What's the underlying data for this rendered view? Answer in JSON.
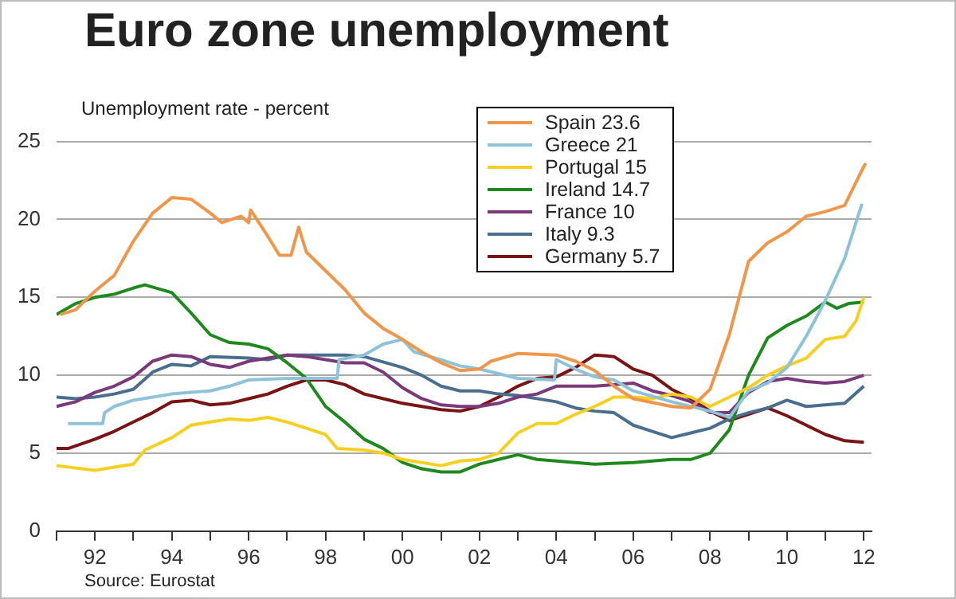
{
  "chart_data": {
    "type": "line",
    "title": "Euro zone unemployment",
    "ylabel": "Unemployment rate - percent",
    "annotations": [
      "Source: Eurostat"
    ],
    "xlim": [
      1991,
      2012.2
    ],
    "xticks": [
      {
        "value": 1991,
        "label": null
      },
      {
        "value": 1992,
        "label": "92"
      },
      {
        "value": 1993,
        "label": null
      },
      {
        "value": 1994,
        "label": "94"
      },
      {
        "value": 1995,
        "label": null
      },
      {
        "value": 1996,
        "label": "96"
      },
      {
        "value": 1997,
        "label": null
      },
      {
        "value": 1998,
        "label": "98"
      },
      {
        "value": 1999,
        "label": null
      },
      {
        "value": 2000,
        "label": "00"
      },
      {
        "value": 2001,
        "label": null
      },
      {
        "value": 2002,
        "label": "02"
      },
      {
        "value": 2003,
        "label": null
      },
      {
        "value": 2004,
        "label": "04"
      },
      {
        "value": 2005,
        "label": null
      },
      {
        "value": 2006,
        "label": "06"
      },
      {
        "value": 2007,
        "label": null
      },
      {
        "value": 2008,
        "label": "08"
      },
      {
        "value": 2009,
        "label": null
      },
      {
        "value": 2010,
        "label": "10"
      },
      {
        "value": 2011,
        "label": null
      },
      {
        "value": 2012,
        "label": "12"
      }
    ],
    "ylim": [
      0,
      25
    ],
    "yticks": [
      0,
      5,
      10,
      15,
      20,
      25
    ],
    "grid": "y",
    "legend": "top",
    "marker": "none",
    "line_style": "solid",
    "series": [
      {
        "name": "Spain 23.6",
        "color": "#f0964a",
        "x": [
          1991.1,
          1991.5,
          1992,
          1992.5,
          1993,
          1993.5,
          1994,
          1994.5,
          1995,
          1995.3,
          1995.8,
          1996,
          1996.05,
          1996.5,
          1996.8,
          1997.1,
          1997.3,
          1997.5,
          1998,
          1998.5,
          1999,
          1999.5,
          2000,
          2000.5,
          2001,
          2001.5,
          2002,
          2002.3,
          2003,
          2004,
          2004.5,
          2005,
          2005.5,
          2006,
          2007,
          2007.5,
          2008,
          2008.5,
          2009,
          2009.5,
          2010,
          2010.5,
          2011,
          2011.5,
          2012,
          2012.05
        ],
        "values": [
          13.9,
          14.2,
          15.4,
          16.4,
          18.6,
          20.4,
          21.4,
          21.3,
          20.4,
          19.8,
          20.2,
          19.8,
          20.6,
          18.9,
          17.7,
          17.7,
          19.5,
          17.9,
          16.7,
          15.5,
          14.0,
          13.0,
          12.3,
          11.5,
          10.8,
          10.3,
          10.4,
          10.9,
          11.4,
          11.3,
          10.9,
          10.3,
          9.3,
          8.5,
          8.0,
          7.9,
          9.1,
          12.6,
          17.3,
          18.5,
          19.2,
          20.2,
          20.5,
          20.9,
          23.4,
          23.6
        ]
      },
      {
        "name": "Greece 21",
        "color": "#8ec2d8",
        "x": [
          1991.3,
          1992.2,
          1992.25,
          1992.5,
          1993,
          1994,
          1995,
          1995.5,
          1996,
          1997,
          1998.3,
          1998.35,
          1999,
          1999.5,
          2000,
          2000.3,
          2001,
          2001.5,
          2002,
          2003,
          2003.95,
          2004,
          2004.5,
          2005,
          2005.5,
          2006,
          2007,
          2008,
          2008.5,
          2009,
          2009.5,
          2010,
          2010.5,
          2011,
          2011.5,
          2011.95
        ],
        "values": [
          6.9,
          6.9,
          7.6,
          8.0,
          8.4,
          8.8,
          9.0,
          9.3,
          9.7,
          9.8,
          9.8,
          11.0,
          11.3,
          12.0,
          12.3,
          11.5,
          11.0,
          10.6,
          10.4,
          9.8,
          9.7,
          11.0,
          10.4,
          9.9,
          9.7,
          9.0,
          8.3,
          7.7,
          7.3,
          9.0,
          9.5,
          10.5,
          12.5,
          14.8,
          17.5,
          21.0
        ]
      },
      {
        "name": "Portugal 15",
        "color": "#f5d020",
        "x": [
          1991,
          1992,
          1992.5,
          1993,
          1993.3,
          1994,
          1994.5,
          1995,
          1995.5,
          1996,
          1996.5,
          1997,
          1997.5,
          1998,
          1998.3,
          1999,
          1999.5,
          2000,
          2001,
          2001.5,
          2002,
          2002.5,
          2003,
          2003.5,
          2004,
          2004.5,
          2005,
          2005.5,
          2006,
          2006.5,
          2007,
          2007.5,
          2008,
          2008.5,
          2009,
          2009.5,
          2010,
          2010.5,
          2011,
          2011.5,
          2011.8,
          2012
        ],
        "values": [
          4.2,
          3.9,
          4.1,
          4.3,
          5.2,
          6.0,
          6.8,
          7.0,
          7.2,
          7.1,
          7.3,
          7.0,
          6.6,
          6.2,
          5.3,
          5.2,
          5.0,
          4.6,
          4.2,
          4.5,
          4.6,
          5.0,
          6.3,
          6.9,
          6.9,
          7.5,
          8.0,
          8.6,
          8.6,
          8.5,
          8.8,
          8.6,
          8.0,
          8.6,
          9.2,
          10.0,
          10.6,
          11.1,
          12.3,
          12.5,
          13.5,
          15.0
        ]
      },
      {
        "name": "Ireland 14.7",
        "color": "#1e8a1e",
        "x": [
          1991,
          1991.5,
          1992,
          1992.5,
          1993,
          1993.3,
          1994,
          1994.5,
          1995,
          1995.5,
          1996,
          1996.5,
          1997,
          1997.5,
          1998,
          1998.5,
          1999,
          1999.5,
          2000,
          2000.5,
          2001,
          2001.5,
          2002,
          2002.5,
          2003,
          2003.5,
          2004,
          2005,
          2006,
          2007,
          2007.5,
          2008,
          2008.5,
          2009,
          2009.5,
          2010,
          2010.5,
          2011,
          2011.3,
          2011.6,
          2012
        ],
        "values": [
          13.9,
          14.6,
          15.0,
          15.2,
          15.6,
          15.8,
          15.3,
          14.0,
          12.6,
          12.1,
          12.0,
          11.7,
          10.8,
          9.8,
          8.0,
          7.0,
          5.9,
          5.3,
          4.4,
          4.0,
          3.8,
          3.8,
          4.3,
          4.6,
          4.9,
          4.6,
          4.5,
          4.3,
          4.4,
          4.6,
          4.6,
          5.0,
          6.5,
          10.0,
          12.4,
          13.2,
          13.8,
          14.7,
          14.3,
          14.6,
          14.7
        ]
      },
      {
        "name": "France 10",
        "color": "#7a3a7a",
        "x": [
          1991,
          1991.5,
          1992,
          1992.5,
          1993,
          1993.5,
          1994,
          1994.5,
          1995,
          1995.5,
          1996,
          1996.5,
          1997,
          1997.5,
          1998,
          1998.5,
          1999,
          1999.5,
          2000,
          2000.5,
          2001,
          2001.5,
          2002,
          2002.5,
          2003,
          2003.5,
          2004,
          2004.5,
          2005,
          2006,
          2006.5,
          2007,
          2007.5,
          2008,
          2008.5,
          2009,
          2009.5,
          2010,
          2010.5,
          2011,
          2011.5,
          2012
        ],
        "values": [
          8.0,
          8.3,
          8.9,
          9.3,
          9.9,
          10.9,
          11.3,
          11.2,
          10.7,
          10.5,
          10.9,
          11.1,
          11.3,
          11.2,
          11.0,
          10.8,
          10.8,
          10.2,
          9.2,
          8.5,
          8.1,
          8.0,
          8.0,
          8.2,
          8.6,
          8.8,
          9.3,
          9.3,
          9.3,
          9.5,
          9.0,
          8.7,
          8.3,
          7.6,
          7.6,
          8.9,
          9.6,
          9.8,
          9.6,
          9.5,
          9.6,
          10.0
        ]
      },
      {
        "name": "Italy 9.3",
        "color": "#4a6e8e",
        "x": [
          1991,
          1991.5,
          1992,
          1992.5,
          1993,
          1993.5,
          1994,
          1994.5,
          1995,
          1996,
          1996.5,
          1997,
          1998,
          1998.5,
          1999,
          2000,
          2000.5,
          2001,
          2001.5,
          2002,
          2002.5,
          2003,
          2004,
          2004.5,
          2005,
          2005.5,
          2006,
          2006.5,
          2007,
          2007.5,
          2008,
          2008.5,
          2009,
          2009.5,
          2010,
          2010.5,
          2011,
          2011.5,
          2012
        ],
        "values": [
          8.6,
          8.5,
          8.6,
          8.8,
          9.1,
          10.2,
          10.7,
          10.6,
          11.2,
          11.1,
          11.0,
          11.3,
          11.3,
          11.3,
          11.2,
          10.5,
          10.0,
          9.3,
          9.0,
          9.0,
          8.8,
          8.7,
          8.3,
          7.9,
          7.7,
          7.6,
          6.8,
          6.4,
          6.0,
          6.3,
          6.6,
          7.2,
          7.6,
          7.9,
          8.4,
          8.0,
          8.1,
          8.2,
          9.3
        ]
      },
      {
        "name": "Germany 5.7",
        "color": "#7a1414",
        "x": [
          1991,
          1991.3,
          1992,
          1992.5,
          1993,
          1993.5,
          1994,
          1994.5,
          1995,
          1995.5,
          1996,
          1996.5,
          1997,
          1997.5,
          1998,
          1998.5,
          1999,
          1999.5,
          2000,
          2000.5,
          2001,
          2001.5,
          2002,
          2002.5,
          2003,
          2003.5,
          2004,
          2004.5,
          2005,
          2005.5,
          2006,
          2006.5,
          2007,
          2007.5,
          2008,
          2008.5,
          2009,
          2009.5,
          2010,
          2010.5,
          2011,
          2011.5,
          2012
        ],
        "values": [
          5.3,
          5.3,
          5.9,
          6.4,
          7.0,
          7.6,
          8.3,
          8.4,
          8.1,
          8.2,
          8.5,
          8.8,
          9.3,
          9.7,
          9.7,
          9.4,
          8.8,
          8.5,
          8.2,
          8.0,
          7.8,
          7.7,
          8.0,
          8.6,
          9.3,
          9.8,
          9.9,
          10.5,
          11.3,
          11.2,
          10.4,
          10.0,
          9.1,
          8.5,
          7.7,
          7.1,
          7.5,
          7.9,
          7.4,
          6.8,
          6.2,
          5.8,
          5.7
        ]
      }
    ]
  }
}
